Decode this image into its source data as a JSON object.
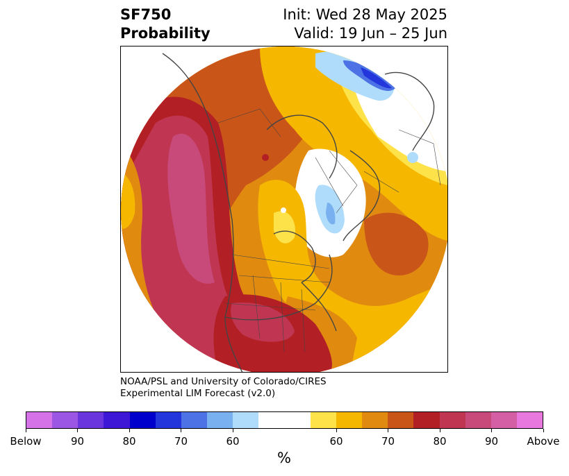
{
  "header": {
    "variable": "SF750",
    "product": "Probability",
    "init": "Init: Wed 28 May 2025",
    "valid": "Valid: 19 Jun – 25 Jun"
  },
  "credit": {
    "line1": "NOAA/PSL and University of Colorado/CIRES",
    "line2": "Experimental LIM Forecast (v2.0)"
  },
  "colorbar": {
    "colors": [
      "#d672e8",
      "#9b56e3",
      "#6b35dd",
      "#3d16d6",
      "#0000cc",
      "#2336dc",
      "#4d72e6",
      "#79b0ef",
      "#b0dcfb",
      "#ffffff",
      "#ffffff",
      "#fde24a",
      "#f5b700",
      "#e08b10",
      "#c95618",
      "#b21f24",
      "#c03652",
      "#c84a7a",
      "#d45fa4",
      "#e878dd"
    ],
    "labels": [
      "Below",
      "90",
      "80",
      "70",
      "60",
      "60",
      "70",
      "80",
      "90",
      "Above"
    ],
    "unit": "%"
  }
}
